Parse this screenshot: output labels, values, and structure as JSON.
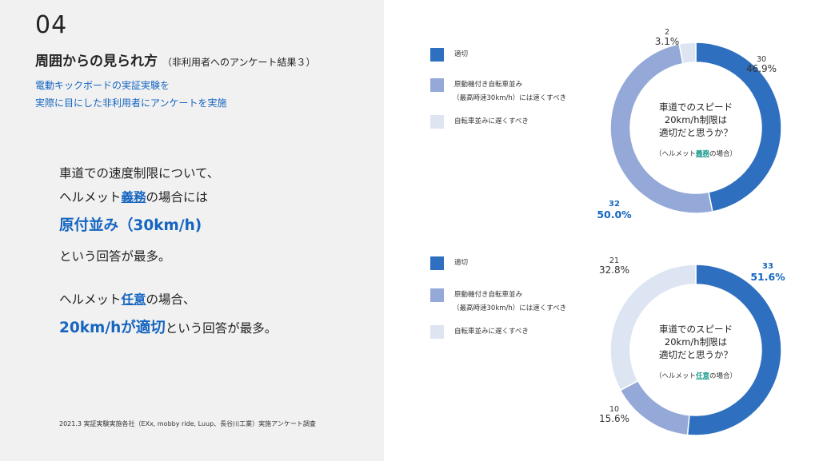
{
  "slide": {
    "number": "04",
    "title": "周囲からの見られ方",
    "subtitle": "（非利用者へのアンケート結果３）",
    "intro_line1": "電動キックボードの実証実験を",
    "intro_line2": "実際に目にした非利用者にアンケートを実施",
    "footnote": "2021.3 実証実験実施各社（EXx, mobby ride, Luup、長谷川工業）実施アンケート調査"
  },
  "message": {
    "l1": "車道での速度制限について、",
    "l2_pre": "ヘルメット",
    "l2_link": "義務",
    "l2_post": "の場合には",
    "l3": "原付並み（30km/h)",
    "l4": "という回答が最多。",
    "l5_pre": "ヘルメット",
    "l5_link": "任意",
    "l5_post": "の場合、",
    "l6_strong": "20km/hが適切",
    "l6_post": "という回答が最多。"
  },
  "legend": {
    "item1": "適切",
    "item2_line1": "原動機付き自転車並み",
    "item2_line2": "（最高時速30km/h）には速くすべき",
    "item3": "自転車並みに遅くすべき"
  },
  "colors": {
    "appropriate": "#2f6fbf",
    "faster": "#95a9d8",
    "slower": "#dde5f3",
    "accent_blue": "#1565c0",
    "teal": "#1a9c8e",
    "left_bg": "#f1f1f1"
  },
  "chart_data": [
    {
      "type": "pie",
      "categories": [
        "適切",
        "原動機付き自転車並み（最高時速30km/h）には速くすべき",
        "自転車並みに遅くすべき"
      ],
      "values": [
        30,
        32,
        2
      ],
      "percentages": [
        "46.9%",
        "50.0%",
        "3.1%"
      ],
      "count_labels": [
        "30",
        "32",
        "2"
      ],
      "center_line1": "車道でのスピード",
      "center_line2": "20km/h制限は",
      "center_line3": "適切だと思うか？",
      "center_note_pre": "（ヘルメット",
      "center_note_link": "義務",
      "center_note_post": "の場合）",
      "highlight_index": 1
    },
    {
      "type": "pie",
      "categories": [
        "適切",
        "原動機付き自転車並み（最高時速30km/h）には速くすべき",
        "自転車並みに遅くすべき"
      ],
      "values": [
        33,
        10,
        21
      ],
      "percentages": [
        "51.6%",
        "15.6%",
        "32.8%"
      ],
      "count_labels": [
        "33",
        "10",
        "21"
      ],
      "center_line1": "車道でのスピード",
      "center_line2": "20km/h制限は",
      "center_line3": "適切だと思うか？",
      "center_note_pre": "（ヘルメット",
      "center_note_link": "任意",
      "center_note_post": "の場合）",
      "highlight_index": 0
    }
  ]
}
